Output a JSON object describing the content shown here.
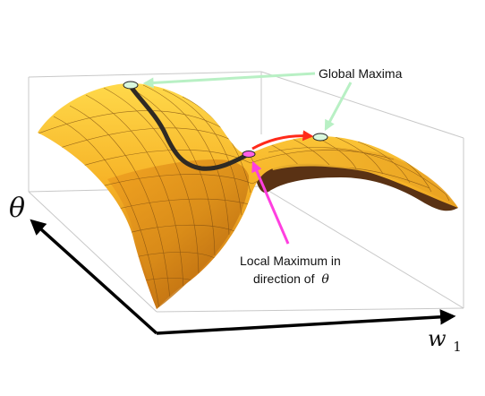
{
  "figure": {
    "labels": {
      "global_maxima": "Global Maxima",
      "local_maximum_line1": "Local Maximum in",
      "local_maximum_line2": "direction of",
      "theta_symbol": "θ",
      "axis_theta": "θ",
      "axis_w": "w",
      "axis_w_subscript": "1"
    },
    "colors": {
      "surface_light": "#ffd23c",
      "surface_mid": "#f2a81c",
      "surface_dark": "#c46a0c",
      "surface_shadow": "#5a3214",
      "ridge_path": "#2f2a24",
      "global_arrow": "#b8f0c4",
      "local_arrow": "#ff3fe0",
      "red_arrow": "#ff2a1a",
      "box_edge": "#c8c8c8",
      "axis": "#000000"
    }
  }
}
